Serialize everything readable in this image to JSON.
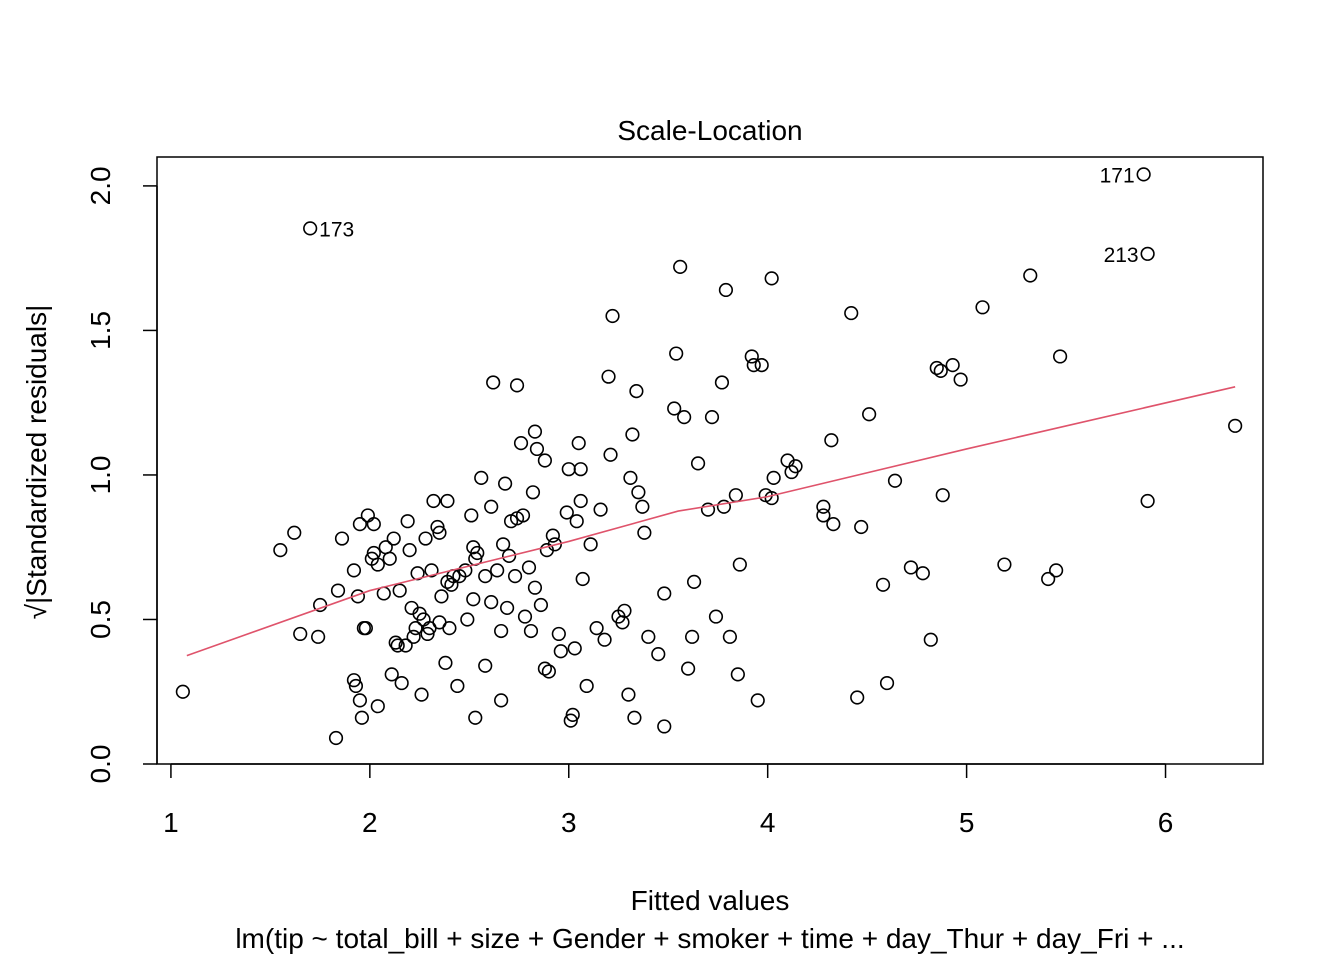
{
  "chart_data": {
    "type": "scatter",
    "title": "Scale-Location",
    "xlabel": "Fitted values",
    "ylabel": "√|Standardized residuals|",
    "subtitle": "lm(tip ~ total_bill + size + Gender + smoker + time + day_Thur + day_Fri +  ...",
    "xlim": [
      0.93,
      6.49
    ],
    "ylim": [
      0.0,
      2.1
    ],
    "xticks": [
      "1",
      "2",
      "3",
      "4",
      "5",
      "6"
    ],
    "yticks": [
      "0.0",
      "0.5",
      "1.0",
      "1.5",
      "2.0"
    ],
    "grid": false,
    "colors": {
      "points": "#000000",
      "smooth_line": "#DF536B"
    },
    "labeled_points": [
      {
        "label": "173",
        "x": 1.7,
        "y": 1.853,
        "side": "right"
      },
      {
        "label": "171",
        "x": 5.89,
        "y": 2.04,
        "side": "left"
      },
      {
        "label": "213",
        "x": 5.91,
        "y": 1.765,
        "side": "left"
      }
    ],
    "points": [
      [
        1.06,
        0.25
      ],
      [
        1.55,
        0.74
      ],
      [
        1.62,
        0.8
      ],
      [
        1.65,
        0.45
      ],
      [
        1.74,
        0.44
      ],
      [
        1.75,
        0.55
      ],
      [
        1.83,
        0.09
      ],
      [
        1.84,
        0.6
      ],
      [
        1.86,
        0.78
      ],
      [
        1.92,
        0.67
      ],
      [
        1.92,
        0.29
      ],
      [
        1.93,
        0.27
      ],
      [
        1.94,
        0.58
      ],
      [
        1.95,
        0.22
      ],
      [
        1.95,
        0.83
      ],
      [
        1.96,
        0.16
      ],
      [
        1.97,
        0.47
      ],
      [
        1.98,
        0.47
      ],
      [
        1.99,
        0.86
      ],
      [
        2.01,
        0.71
      ],
      [
        2.02,
        0.73
      ],
      [
        2.02,
        0.83
      ],
      [
        2.04,
        0.2
      ],
      [
        2.04,
        0.69
      ],
      [
        2.07,
        0.59
      ],
      [
        2.08,
        0.75
      ],
      [
        2.1,
        0.71
      ],
      [
        2.11,
        0.31
      ],
      [
        2.12,
        0.78
      ],
      [
        2.13,
        0.42
      ],
      [
        2.14,
        0.41
      ],
      [
        2.15,
        0.6
      ],
      [
        2.16,
        0.28
      ],
      [
        2.18,
        0.41
      ],
      [
        2.19,
        0.84
      ],
      [
        2.2,
        0.74
      ],
      [
        2.21,
        0.54
      ],
      [
        2.22,
        0.44
      ],
      [
        2.23,
        0.47
      ],
      [
        2.24,
        0.66
      ],
      [
        2.25,
        0.52
      ],
      [
        2.26,
        0.24
      ],
      [
        2.27,
        0.5
      ],
      [
        2.28,
        0.78
      ],
      [
        2.29,
        0.45
      ],
      [
        2.3,
        0.47
      ],
      [
        2.31,
        0.67
      ],
      [
        2.32,
        0.91
      ],
      [
        2.34,
        0.82
      ],
      [
        2.35,
        0.8
      ],
      [
        2.35,
        0.49
      ],
      [
        2.36,
        0.58
      ],
      [
        2.38,
        0.35
      ],
      [
        2.39,
        0.91
      ],
      [
        2.39,
        0.63
      ],
      [
        2.4,
        0.47
      ],
      [
        2.41,
        0.62
      ],
      [
        2.42,
        0.65
      ],
      [
        2.44,
        0.27
      ],
      [
        2.45,
        0.65
      ],
      [
        2.48,
        0.67
      ],
      [
        2.49,
        0.5
      ],
      [
        2.51,
        0.86
      ],
      [
        2.52,
        0.75
      ],
      [
        2.52,
        0.57
      ],
      [
        2.53,
        0.16
      ],
      [
        2.53,
        0.71
      ],
      [
        2.54,
        0.73
      ],
      [
        2.56,
        0.99
      ],
      [
        2.58,
        0.34
      ],
      [
        2.58,
        0.65
      ],
      [
        2.61,
        0.89
      ],
      [
        2.61,
        0.56
      ],
      [
        2.62,
        1.32
      ],
      [
        2.64,
        0.67
      ],
      [
        2.66,
        0.46
      ],
      [
        2.66,
        0.22
      ],
      [
        2.67,
        0.76
      ],
      [
        2.68,
        0.97
      ],
      [
        2.69,
        0.54
      ],
      [
        2.7,
        0.72
      ],
      [
        2.71,
        0.84
      ],
      [
        2.73,
        0.65
      ],
      [
        2.74,
        1.31
      ],
      [
        2.74,
        0.85
      ],
      [
        2.76,
        1.11
      ],
      [
        2.77,
        0.86
      ],
      [
        2.78,
        0.51
      ],
      [
        2.8,
        0.68
      ],
      [
        2.81,
        0.46
      ],
      [
        2.82,
        0.94
      ],
      [
        2.83,
        0.61
      ],
      [
        2.83,
        1.15
      ],
      [
        2.84,
        1.09
      ],
      [
        2.86,
        0.55
      ],
      [
        2.88,
        0.33
      ],
      [
        2.88,
        1.05
      ],
      [
        2.89,
        0.74
      ],
      [
        2.9,
        0.32
      ],
      [
        2.92,
        0.79
      ],
      [
        2.93,
        0.76
      ],
      [
        2.95,
        0.45
      ],
      [
        2.96,
        0.39
      ],
      [
        2.99,
        0.87
      ],
      [
        3.0,
        1.02
      ],
      [
        3.01,
        0.15
      ],
      [
        3.02,
        0.17
      ],
      [
        3.03,
        0.4
      ],
      [
        3.04,
        0.84
      ],
      [
        3.05,
        1.11
      ],
      [
        3.06,
        0.91
      ],
      [
        3.06,
        1.02
      ],
      [
        3.07,
        0.64
      ],
      [
        3.09,
        0.27
      ],
      [
        3.11,
        0.76
      ],
      [
        3.14,
        0.47
      ],
      [
        3.16,
        0.88
      ],
      [
        3.18,
        0.43
      ],
      [
        3.2,
        1.34
      ],
      [
        3.21,
        1.07
      ],
      [
        3.22,
        1.55
      ],
      [
        3.25,
        0.51
      ],
      [
        3.27,
        0.49
      ],
      [
        3.28,
        0.53
      ],
      [
        3.3,
        0.24
      ],
      [
        3.31,
        0.99
      ],
      [
        3.32,
        1.14
      ],
      [
        3.33,
        0.16
      ],
      [
        3.34,
        1.29
      ],
      [
        3.35,
        0.94
      ],
      [
        3.37,
        0.89
      ],
      [
        3.38,
        0.8
      ],
      [
        3.4,
        0.44
      ],
      [
        3.45,
        0.38
      ],
      [
        3.48,
        0.59
      ],
      [
        3.48,
        0.13
      ],
      [
        3.53,
        1.23
      ],
      [
        3.54,
        1.42
      ],
      [
        3.56,
        1.72
      ],
      [
        3.58,
        1.2
      ],
      [
        3.6,
        0.33
      ],
      [
        3.62,
        0.44
      ],
      [
        3.63,
        0.63
      ],
      [
        3.65,
        1.04
      ],
      [
        3.7,
        0.88
      ],
      [
        3.72,
        1.2
      ],
      [
        3.74,
        0.51
      ],
      [
        3.77,
        1.32
      ],
      [
        3.78,
        0.89
      ],
      [
        3.79,
        1.64
      ],
      [
        3.81,
        0.44
      ],
      [
        3.84,
        0.93
      ],
      [
        3.85,
        0.31
      ],
      [
        3.86,
        0.69
      ],
      [
        3.92,
        1.41
      ],
      [
        3.93,
        1.38
      ],
      [
        3.95,
        0.22
      ],
      [
        3.97,
        1.38
      ],
      [
        3.99,
        0.93
      ],
      [
        4.02,
        1.68
      ],
      [
        4.02,
        0.92
      ],
      [
        4.03,
        0.99
      ],
      [
        4.1,
        1.05
      ],
      [
        4.12,
        1.01
      ],
      [
        4.14,
        1.03
      ],
      [
        4.28,
        0.89
      ],
      [
        4.28,
        0.86
      ],
      [
        4.32,
        1.12
      ],
      [
        4.33,
        0.83
      ],
      [
        4.42,
        1.56
      ],
      [
        4.45,
        0.23
      ],
      [
        4.47,
        0.82
      ],
      [
        4.51,
        1.21
      ],
      [
        4.58,
        0.62
      ],
      [
        4.6,
        0.28
      ],
      [
        4.64,
        0.98
      ],
      [
        4.72,
        0.68
      ],
      [
        4.78,
        0.66
      ],
      [
        4.82,
        0.43
      ],
      [
        4.85,
        1.37
      ],
      [
        4.87,
        1.36
      ],
      [
        4.88,
        0.93
      ],
      [
        4.93,
        1.38
      ],
      [
        4.97,
        1.33
      ],
      [
        5.08,
        1.58
      ],
      [
        5.19,
        0.69
      ],
      [
        5.32,
        1.69
      ],
      [
        5.41,
        0.64
      ],
      [
        5.45,
        0.67
      ],
      [
        5.47,
        1.41
      ],
      [
        5.91,
        0.91
      ],
      [
        6.35,
        1.17
      ]
    ],
    "smooth_line": {
      "x": [
        1.08,
        2.0,
        3.0,
        3.55,
        4.0,
        5.0,
        6.35
      ],
      "y": [
        0.375,
        0.6,
        0.77,
        0.875,
        0.925,
        1.09,
        1.305
      ]
    }
  }
}
